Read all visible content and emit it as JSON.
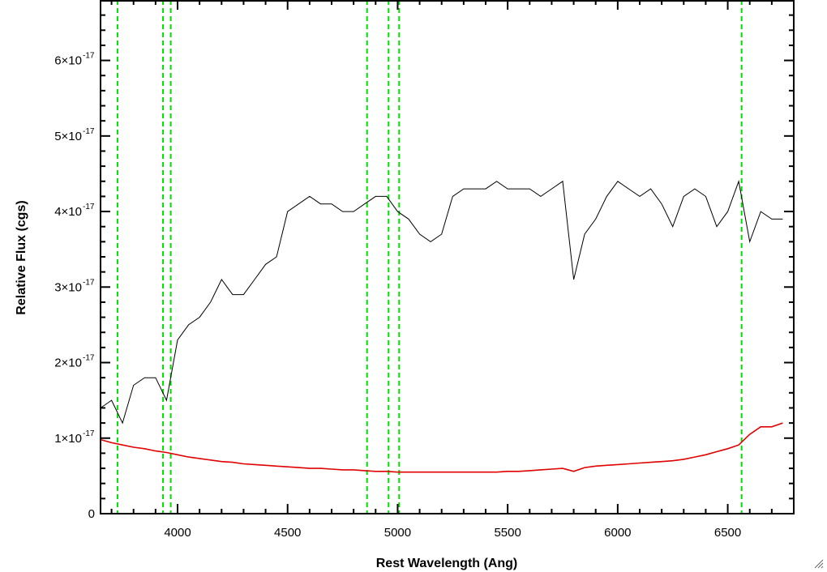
{
  "chart_data": {
    "type": "line",
    "title": "",
    "xlabel": "Rest Wavelength (Ang)",
    "ylabel": "Relative Flux (cgs)",
    "xlim": [
      3650,
      6800
    ],
    "ylim": [
      0,
      6.8e-17
    ],
    "x_ticks": [
      4000,
      4500,
      5000,
      5500,
      6000,
      6500
    ],
    "x_tick_labels": [
      "4000",
      "4500",
      "5000",
      "5500",
      "6000",
      "6500"
    ],
    "y_ticks": [
      0,
      1e-17,
      2e-17,
      3e-17,
      4e-17,
      5e-17,
      6e-17
    ],
    "y_tick_labels": [
      {
        "mantissa": "0",
        "exponent": ""
      },
      {
        "mantissa": "1×10",
        "exponent": "-17"
      },
      {
        "mantissa": "2×10",
        "exponent": "-17"
      },
      {
        "mantissa": "3×10",
        "exponent": "-17"
      },
      {
        "mantissa": "4×10",
        "exponent": "-17"
      },
      {
        "mantissa": "5×10",
        "exponent": "-17"
      },
      {
        "mantissa": "6×10",
        "exponent": "-17"
      }
    ],
    "grid": false,
    "series": [
      {
        "color": "#000000",
        "x": [
          3650,
          3700,
          3750,
          3800,
          3850,
          3900,
          3950,
          4000,
          4050,
          4100,
          4150,
          4200,
          4250,
          4300,
          4350,
          4400,
          4450,
          4500,
          4550,
          4600,
          4650,
          4700,
          4750,
          4800,
          4850,
          4900,
          4950,
          5000,
          5050,
          5100,
          5150,
          5200,
          5250,
          5300,
          5350,
          5400,
          5450,
          5500,
          5550,
          5600,
          5650,
          5700,
          5750,
          5800,
          5850,
          5900,
          5950,
          6000,
          6050,
          6100,
          6150,
          6200,
          6250,
          6300,
          6350,
          6400,
          6450,
          6500,
          6550,
          6600,
          6650,
          6700,
          6750
        ],
        "y": [
          1.4e-17,
          1.5e-17,
          1.2e-17,
          1.7e-17,
          1.8e-17,
          1.8e-17,
          1.5e-17,
          2.3e-17,
          2.5e-17,
          2.6e-17,
          2.8e-17,
          3.1e-17,
          2.9e-17,
          2.9e-17,
          3.1e-17,
          3.3e-17,
          3.4e-17,
          4e-17,
          4.1e-17,
          4.2e-17,
          4.1e-17,
          4.1e-17,
          4e-17,
          4e-17,
          4.1e-17,
          4.2e-17,
          4.2e-17,
          4e-17,
          3.9e-17,
          3.7e-17,
          3.6e-17,
          3.7e-17,
          4.2e-17,
          4.3e-17,
          4.3e-17,
          4.3e-17,
          4.4e-17,
          4.3e-17,
          4.3e-17,
          4.3e-17,
          4.2e-17,
          4.3e-17,
          4.4e-17,
          3.1e-17,
          3.7e-17,
          3.9e-17,
          4.2e-17,
          4.4e-17,
          4.3e-17,
          4.2e-17,
          4.3e-17,
          4.1e-17,
          3.8e-17,
          4.2e-17,
          4.3e-17,
          4.2e-17,
          3.8e-17,
          4e-17,
          4.4e-17,
          3.6e-17,
          4e-17,
          3.9e-17,
          3.9e-17
        ]
      },
      {
        "color": "#e00000",
        "x": [
          3650,
          3700,
          3750,
          3800,
          3850,
          3900,
          3950,
          4000,
          4050,
          4100,
          4150,
          4200,
          4250,
          4300,
          4350,
          4400,
          4450,
          4500,
          4550,
          4600,
          4650,
          4700,
          4750,
          4800,
          4850,
          4900,
          4950,
          5000,
          5050,
          5100,
          5150,
          5200,
          5250,
          5300,
          5350,
          5400,
          5450,
          5500,
          5550,
          5600,
          5650,
          5700,
          5750,
          5800,
          5850,
          5900,
          5950,
          6000,
          6050,
          6100,
          6150,
          6200,
          6250,
          6300,
          6350,
          6400,
          6450,
          6500,
          6550,
          6600,
          6650,
          6700,
          6750
        ],
        "y": [
          9.8e-18,
          9.4e-18,
          9.1e-18,
          8.8e-18,
          8.6e-18,
          8.3e-18,
          8.1e-18,
          7.8e-18,
          7.5e-18,
          7.3e-18,
          7.1e-18,
          6.9e-18,
          6.8e-18,
          6.6e-18,
          6.5e-18,
          6.4e-18,
          6.3e-18,
          6.2e-18,
          6.1e-18,
          6e-18,
          6e-18,
          5.9e-18,
          5.8e-18,
          5.8e-18,
          5.7e-18,
          5.6e-18,
          5.6e-18,
          5.5e-18,
          5.5e-18,
          5.5e-18,
          5.5e-18,
          5.5e-18,
          5.5e-18,
          5.5e-18,
          5.5e-18,
          5.5e-18,
          5.5e-18,
          5.6e-18,
          5.6e-18,
          5.7e-18,
          5.8e-18,
          5.9e-18,
          6e-18,
          5.6e-18,
          6.1e-18,
          6.3e-18,
          6.4e-18,
          6.5e-18,
          6.6e-18,
          6.7e-18,
          6.8e-18,
          6.9e-18,
          7e-18,
          7.2e-18,
          7.5e-18,
          7.8e-18,
          8.2e-18,
          8.6e-18,
          9.1e-18,
          1.05e-17,
          1.15e-17,
          1.15e-17,
          1.2e-17
        ]
      }
    ],
    "reference_lines": {
      "color": "#00dd00",
      "style": "dashed",
      "x": [
        3727,
        3934,
        3969,
        4861,
        4959,
        5007,
        6563
      ]
    }
  }
}
